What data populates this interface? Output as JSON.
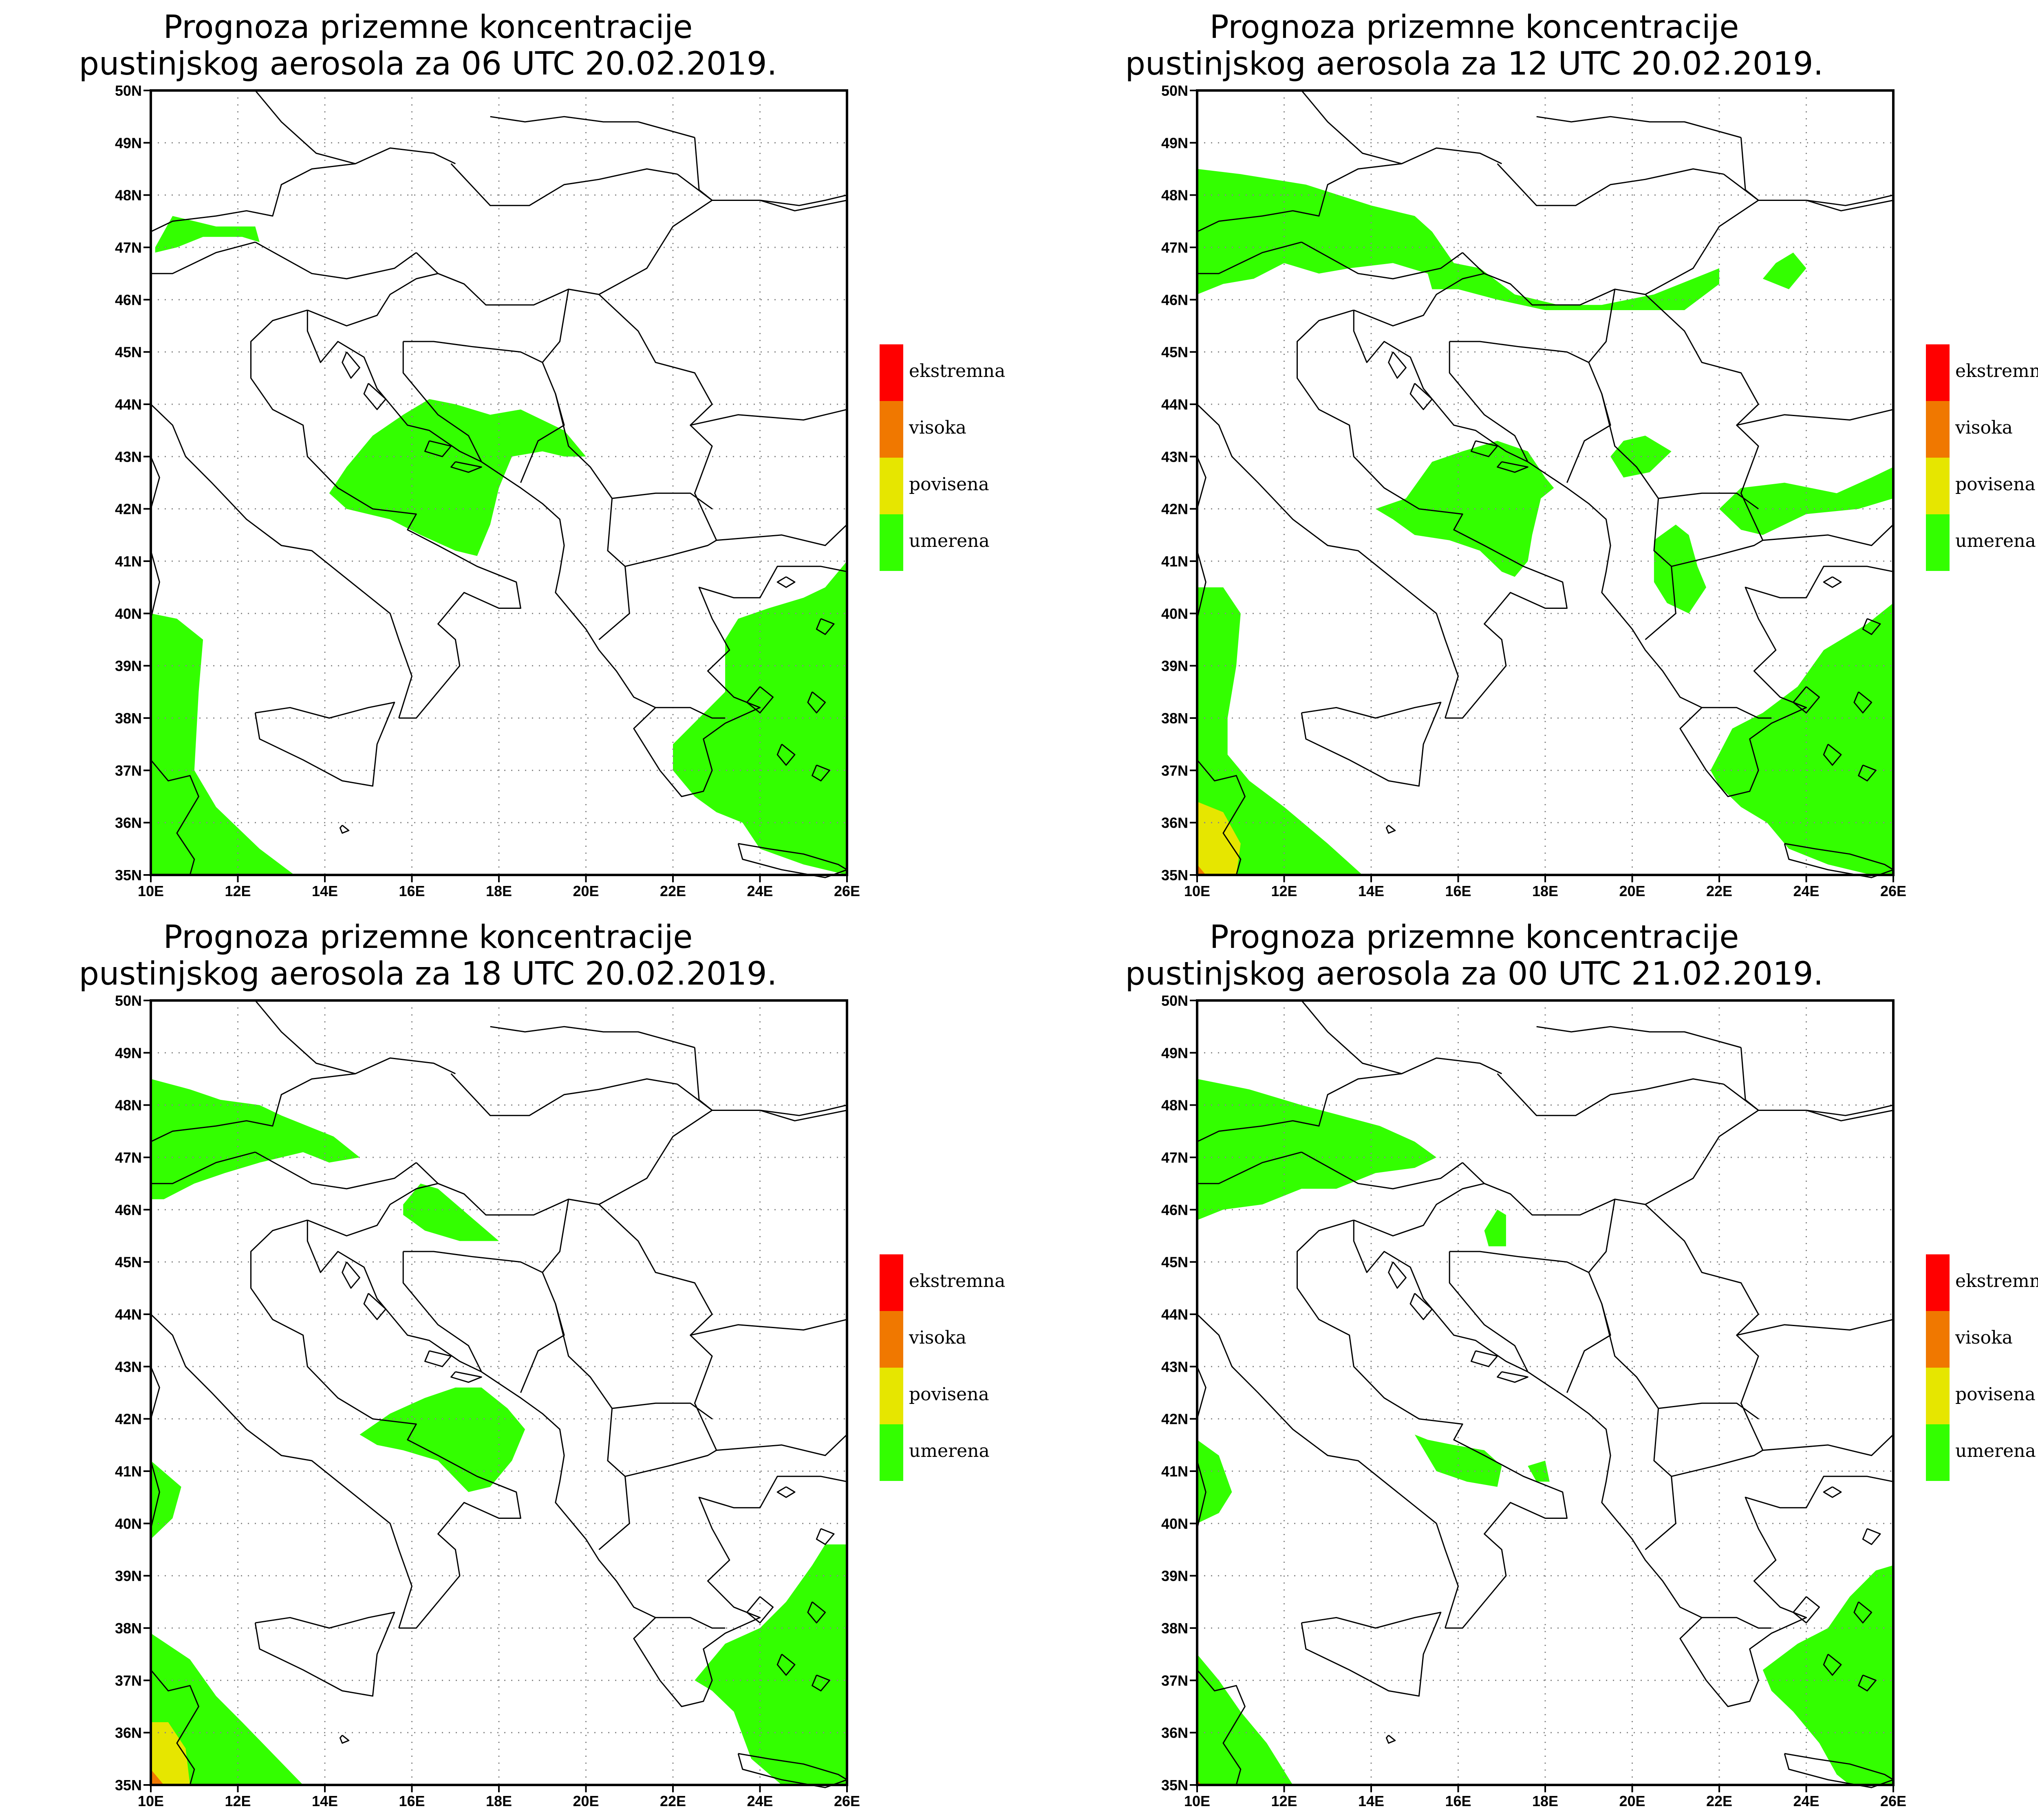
{
  "legend": [
    {
      "label": "ekstremna",
      "color": "#ff0000"
    },
    {
      "label": "visoka",
      "color": "#f07800"
    },
    {
      "label": "povisena",
      "color": "#e6e600"
    },
    {
      "label": "umerena",
      "color": "#33ff00"
    }
  ],
  "axes": {
    "lat_labels": [
      "50N",
      "49N",
      "48N",
      "47N",
      "46N",
      "45N",
      "44N",
      "43N",
      "42N",
      "41N",
      "40N",
      "39N",
      "38N",
      "37N",
      "36N",
      "35N"
    ],
    "lon_labels": [
      "10E",
      "12E",
      "14E",
      "16E",
      "18E",
      "20E",
      "22E",
      "24E",
      "26E"
    ],
    "lon_range": [
      10,
      26
    ],
    "lat_range": [
      35,
      50
    ]
  },
  "panels": [
    {
      "title_line1": "Prognoza prizemne koncentracije",
      "title_line2": "pustinjskog aerosola za 06 UTC 20.02.2019."
    },
    {
      "title_line1": "Prognoza prizemne koncentracije",
      "title_line2": "pustinjskog aerosola za 12 UTC 20.02.2019."
    },
    {
      "title_line1": "Prognoza prizemne koncentracije",
      "title_line2": "pustinjskog aerosola za 18 UTC 20.02.2019."
    },
    {
      "title_line1": "Prognoza prizemne koncentracije",
      "title_line2": "pustinjskog aerosola za 00 UTC 21.02.2019."
    }
  ]
}
